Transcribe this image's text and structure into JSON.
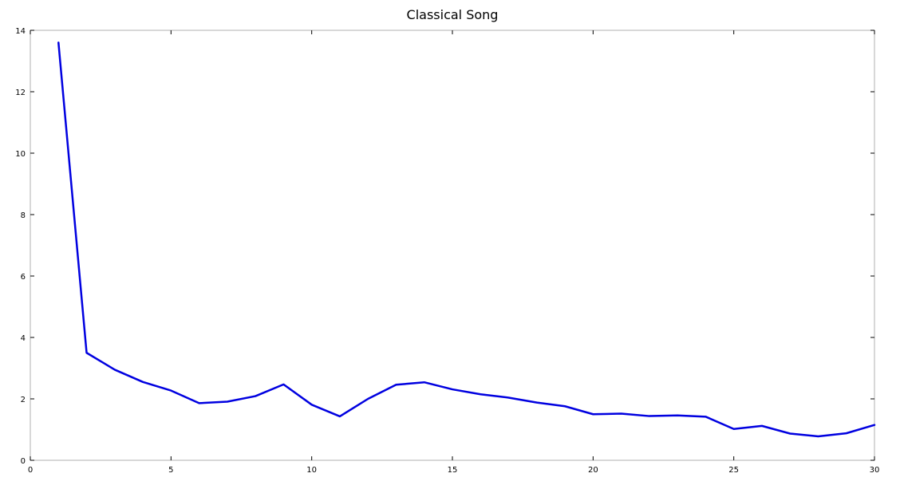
{
  "chart_data": {
    "type": "line",
    "title": "Classical Song",
    "xlabel": "",
    "ylabel": "",
    "xlim": [
      0,
      30
    ],
    "ylim": [
      0,
      14
    ],
    "x_ticks": [
      0,
      5,
      10,
      15,
      20,
      25,
      30
    ],
    "y_ticks": [
      0,
      2,
      4,
      6,
      8,
      10,
      12,
      14
    ],
    "grid": false,
    "series": [
      {
        "color": "#0000e0",
        "x": [
          1,
          2,
          3,
          4,
          5,
          6,
          7,
          8,
          9,
          10,
          11,
          12,
          13,
          14,
          15,
          16,
          17,
          18,
          19,
          20,
          21,
          22,
          23,
          24,
          25,
          26,
          27,
          28,
          29,
          30
        ],
        "y": [
          13.6,
          3.5,
          2.95,
          2.55,
          2.27,
          1.86,
          1.91,
          2.09,
          2.47,
          1.81,
          1.43,
          2.0,
          2.46,
          2.54,
          2.31,
          2.15,
          2.04,
          1.88,
          1.76,
          1.5,
          1.52,
          1.44,
          1.46,
          1.42,
          1.02,
          1.12,
          0.87,
          0.78,
          0.88,
          1.15
        ]
      }
    ]
  }
}
